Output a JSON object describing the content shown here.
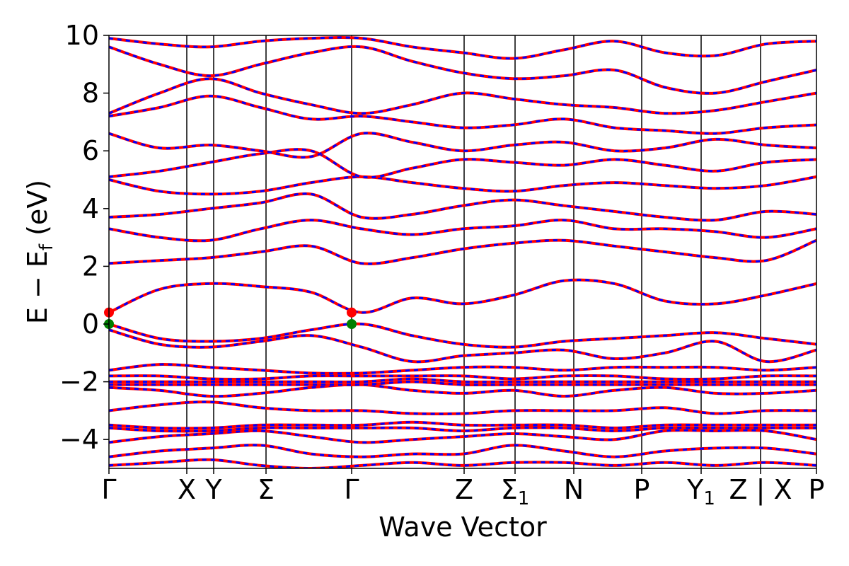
{
  "chart_data": {
    "type": "line",
    "title": "",
    "xlabel": "Wave Vector",
    "ylabel": "E − E",
    "ylabel_sub": "f",
    "ylabel_unit": " (eV)",
    "ylim": [
      -5,
      10
    ],
    "yticks": [
      10,
      8,
      6,
      4,
      2,
      0,
      -2,
      -4
    ],
    "ytick_labels": [
      "10",
      "8",
      "6",
      "4",
      "2",
      "0",
      "−2",
      "−4"
    ],
    "kpath": [
      {
        "label": "Γ",
        "pos": 0.0
      },
      {
        "label": "X",
        "pos": 0.11
      },
      {
        "label": "Y",
        "pos": 0.148
      },
      {
        "label": "Σ",
        "pos": 0.222
      },
      {
        "label": "Γ",
        "pos": 0.343
      },
      {
        "label": "Z",
        "pos": 0.502
      },
      {
        "label": "Σ",
        "sub": "1",
        "pos": 0.574
      },
      {
        "label": "N",
        "pos": 0.657
      },
      {
        "label": "P",
        "pos": 0.753
      },
      {
        "label": "Y",
        "sub": "1",
        "pos": 0.837
      },
      {
        "label": "Z | X",
        "pos": 0.921
      },
      {
        "label": "P",
        "pos": 1.0
      }
    ],
    "series": [
      {
        "name": "",
        "color": "#ff0000",
        "style": "solid",
        "width": 4
      },
      {
        "name": "",
        "color": "#0000ff",
        "style": "dashed",
        "width": 3
      }
    ],
    "bands": [
      [
        -4.9,
        -4.8,
        -4.7,
        -4.9,
        -5.0,
        -4.9,
        -4.8,
        -4.9,
        -4.8,
        -4.8,
        -4.9,
        -4.8,
        -4.9,
        -4.8,
        -4.9
      ],
      [
        -4.6,
        -4.4,
        -4.3,
        -4.2,
        -4.5,
        -4.6,
        -4.5,
        -4.5,
        -4.2,
        -4.4,
        -4.6,
        -4.4,
        -4.3,
        -4.3,
        -4.5
      ],
      [
        -4.1,
        -3.9,
        -3.8,
        -3.7,
        -3.9,
        -4.1,
        -4.0,
        -3.9,
        -3.8,
        -3.9,
        -4.0,
        -3.7,
        -3.7,
        -3.7,
        -4.0
      ],
      [
        -3.6,
        -3.7,
        -3.7,
        -3.6,
        -3.6,
        -3.6,
        -3.6,
        -3.7,
        -3.6,
        -3.6,
        -3.7,
        -3.6,
        -3.6,
        -3.6,
        -3.6
      ],
      [
        -3.5,
        -3.6,
        -3.6,
        -3.5,
        -3.5,
        -3.5,
        -3.4,
        -3.5,
        -3.5,
        -3.5,
        -3.6,
        -3.5,
        -3.5,
        -3.5,
        -3.5
      ],
      [
        -3.0,
        -2.8,
        -2.7,
        -2.9,
        -3.0,
        -3.0,
        -3.1,
        -3.1,
        -3.0,
        -3.0,
        -3.0,
        -2.9,
        -3.1,
        -3.0,
        -3.0
      ],
      [
        -2.2,
        -2.3,
        -2.5,
        -2.4,
        -2.2,
        -2.1,
        -2.3,
        -2.4,
        -2.3,
        -2.5,
        -2.3,
        -2.2,
        -2.4,
        -2.4,
        -2.3
      ],
      [
        -2.1,
        -2.1,
        -2.1,
        -2.1,
        -2.1,
        -2.1,
        -2.0,
        -2.1,
        -2.1,
        -2.1,
        -2.1,
        -2.1,
        -2.1,
        -2.1,
        -2.1
      ],
      [
        -2.0,
        -2.0,
        -2.0,
        -2.0,
        -2.0,
        -2.0,
        -1.9,
        -2.0,
        -2.0,
        -2.0,
        -2.0,
        -2.0,
        -2.0,
        -2.0,
        -2.0
      ],
      [
        -1.8,
        -1.8,
        -1.9,
        -1.9,
        -1.8,
        -1.8,
        -1.8,
        -1.8,
        -1.9,
        -1.8,
        -1.8,
        -1.9,
        -1.9,
        -1.8,
        -1.8
      ],
      [
        -1.6,
        -1.4,
        -1.5,
        -1.6,
        -1.7,
        -1.7,
        -1.6,
        -1.5,
        -1.5,
        -1.6,
        -1.5,
        -1.5,
        -1.5,
        -1.6,
        -1.5
      ],
      [
        -0.2,
        -0.7,
        -0.8,
        -0.6,
        -0.4,
        -0.8,
        -1.3,
        -1.1,
        -1.0,
        -0.9,
        -1.2,
        -1.0,
        -0.6,
        -1.3,
        -0.9
      ],
      [
        0.0,
        -0.5,
        -0.6,
        -0.5,
        -0.2,
        0.0,
        -0.4,
        -0.7,
        -0.8,
        -0.6,
        -0.5,
        -0.4,
        -0.3,
        -0.5,
        -0.7
      ],
      [
        0.4,
        1.2,
        1.4,
        1.3,
        1.1,
        0.4,
        0.9,
        0.7,
        1.0,
        1.5,
        1.4,
        0.8,
        0.7,
        1.0,
        1.4
      ],
      [
        2.1,
        2.2,
        2.3,
        2.5,
        2.7,
        2.1,
        2.3,
        2.6,
        2.8,
        2.9,
        2.7,
        2.5,
        2.3,
        2.2,
        2.9
      ],
      [
        3.3,
        3.0,
        2.9,
        3.3,
        3.6,
        3.3,
        3.1,
        3.3,
        3.4,
        3.6,
        3.3,
        3.3,
        3.2,
        3.0,
        3.3
      ],
      [
        3.7,
        3.8,
        4.0,
        4.2,
        4.5,
        3.7,
        3.8,
        4.1,
        4.3,
        4.1,
        3.9,
        3.7,
        3.6,
        3.9,
        3.8
      ],
      [
        5.0,
        4.6,
        4.5,
        4.6,
        4.9,
        5.1,
        4.9,
        4.7,
        4.6,
        4.8,
        4.9,
        4.8,
        4.7,
        4.8,
        5.1
      ],
      [
        5.1,
        5.3,
        5.6,
        5.9,
        6.0,
        5.1,
        5.4,
        5.7,
        5.6,
        5.5,
        5.7,
        5.5,
        5.3,
        5.6,
        5.7
      ],
      [
        6.6,
        6.1,
        6.2,
        6.0,
        5.8,
        6.6,
        6.3,
        6.0,
        6.2,
        6.3,
        6.0,
        6.1,
        6.4,
        6.2,
        6.1
      ],
      [
        7.2,
        7.5,
        7.9,
        7.5,
        7.1,
        7.2,
        7.0,
        6.8,
        6.9,
        7.1,
        6.8,
        6.7,
        6.6,
        6.8,
        6.9
      ],
      [
        7.3,
        8.0,
        8.5,
        8.0,
        7.6,
        7.3,
        7.6,
        8.0,
        7.8,
        7.6,
        7.5,
        7.3,
        7.4,
        7.7,
        8.0
      ],
      [
        9.6,
        9.0,
        8.6,
        9.0,
        9.4,
        9.6,
        9.1,
        8.7,
        8.5,
        8.6,
        8.8,
        8.2,
        8.0,
        8.4,
        8.8
      ],
      [
        9.9,
        9.7,
        9.6,
        9.8,
        9.9,
        9.9,
        9.6,
        9.4,
        9.2,
        9.5,
        9.8,
        9.4,
        9.3,
        9.7,
        9.8
      ]
    ],
    "markers": [
      {
        "x": 0.0,
        "y": 0.4,
        "color": "#ff0000"
      },
      {
        "x": 0.0,
        "y": 0.0,
        "color": "#008000"
      },
      {
        "x": 0.343,
        "y": 0.4,
        "color": "#ff0000"
      },
      {
        "x": 0.343,
        "y": 0.0,
        "color": "#008000"
      }
    ]
  }
}
